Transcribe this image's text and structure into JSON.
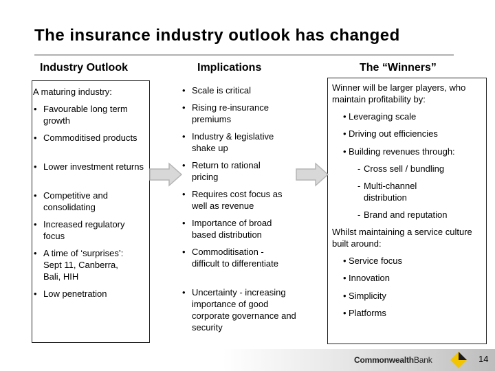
{
  "title": "The insurance industry outlook has changed",
  "columns": {
    "outlook": {
      "heading": "Industry Outlook",
      "intro": "A maturing industry:",
      "items": [
        "Favourable long term growth",
        "Commoditised products",
        "Lower investment returns",
        "Competitive and consolidating",
        "Increased regulatory focus",
        "A time of ‘surprises’: Sept 11, Canberra, Bali, HIH",
        "Low penetration"
      ]
    },
    "implications": {
      "heading": "Implications",
      "items": [
        "Scale is critical",
        "Rising re-insurance premiums",
        "Industry & legislative shake up",
        "Return to rational pricing",
        "Requires cost focus as well as revenue",
        "Importance of broad based distribution",
        "Commoditisation - difficult to differentiate",
        "Uncertainty - increasing importance of good corporate governance and security"
      ]
    },
    "winners": {
      "heading": "The “Winners”",
      "intro": "Winner will be larger players, who maintain profitability by:",
      "items": [
        "Leveraging scale",
        "Driving out efficiencies",
        "Building revenues through:"
      ],
      "sub_items": [
        "Cross sell / bundling",
        "Multi-channel distribution",
        "Brand and reputation"
      ],
      "intro2": "Whilst maintaining a service culture built around:",
      "items2": [
        "Service focus",
        "Innovation",
        "Simplicity",
        "Platforms"
      ]
    }
  },
  "footer": {
    "logo_bold": "Commonwealth",
    "logo_light": "Bank",
    "page_number": "14"
  },
  "colors": {
    "arrow_fill": "#d8d8d8",
    "arrow_stroke": "#b5b5b5",
    "logo_yellow": "#f2c500"
  },
  "icons": {
    "arrow": "right-arrow-icon",
    "logo": "commonwealth-bank-logo-icon"
  }
}
